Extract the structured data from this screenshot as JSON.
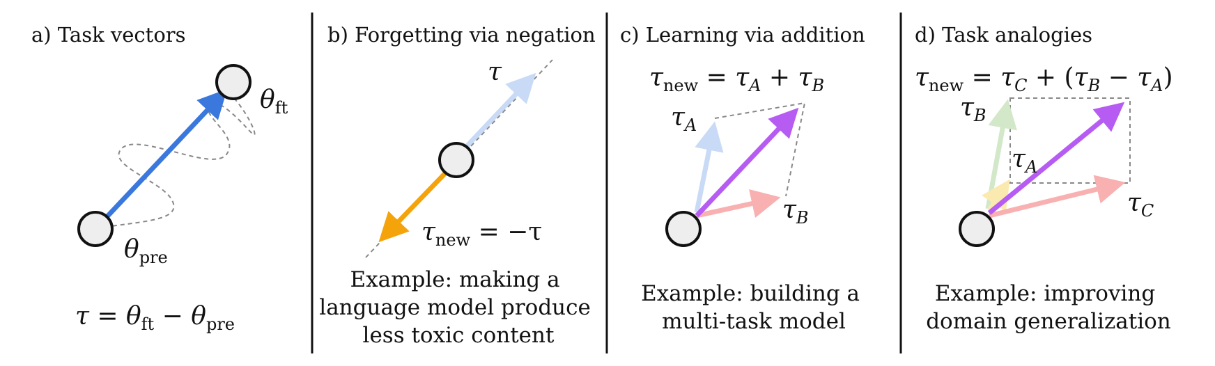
{
  "panels": {
    "a": {
      "title": "a) Task vectors",
      "theta": "θ",
      "sub_ft": "ft",
      "sub_pre": "pre",
      "eq_tau": "τ",
      "eq_equals": " = ",
      "eq_minus": " − "
    },
    "b": {
      "title": "b) Forgetting via negation",
      "tau": "τ",
      "eq_tau": "τ",
      "sub_new": "new",
      "eq_rhs": " = −τ",
      "caption": [
        "Example: making a",
        "language model produce",
        "less toxic content"
      ]
    },
    "c": {
      "title": "c) Learning via addition",
      "tau": "τ",
      "sub_new": "new",
      "sub_A": "A",
      "sub_B": "B",
      "plus": " + ",
      "equals": " = ",
      "caption": [
        "Example: building a",
        "multi-task model"
      ]
    },
    "d": {
      "title": "d) Task analogies",
      "tau": "τ",
      "sub_new": "new",
      "sub_A": "A",
      "sub_B": "B",
      "sub_C": "C",
      "equals": " = ",
      "plus": " + (",
      "minus": " − ",
      "close": ")",
      "caption": [
        "Example: improving",
        "domain generalization"
      ]
    }
  },
  "colors": {
    "blue": "#3a78dd",
    "light_blue": "#c8daf6",
    "orange": "#f5a30a",
    "purple": "#b65cf2",
    "pink": "#f8b0b0",
    "light_green": "#d2e8c8",
    "light_yellow": "#fbeab0",
    "gray_dash": "#888888"
  }
}
